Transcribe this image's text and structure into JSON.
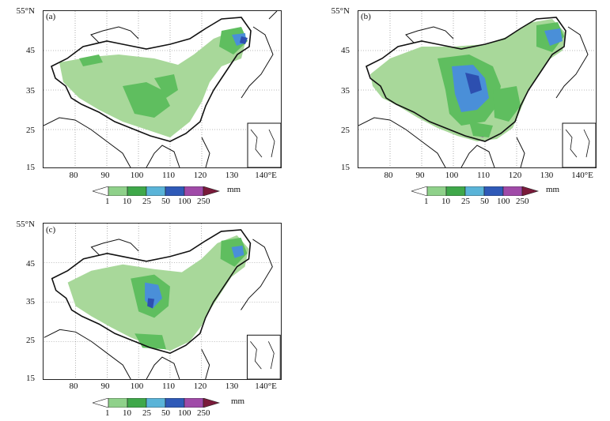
{
  "panels": [
    {
      "label": "(a)",
      "y_ticks": [
        "55°N",
        "45",
        "35",
        "25",
        "15"
      ],
      "x_ticks": [
        "80",
        "90",
        "100",
        "110",
        "120",
        "130",
        "140°E"
      ]
    },
    {
      "label": "(b)",
      "y_ticks": [
        "55°N",
        "45",
        "35",
        "25",
        "15"
      ],
      "x_ticks": [
        "80",
        "90",
        "100",
        "110",
        "120",
        "130",
        "140°E"
      ]
    },
    {
      "label": "(c)",
      "y_ticks": [
        "55°N",
        "45",
        "35",
        "25",
        "15"
      ],
      "x_ticks": [
        "80",
        "90",
        "100",
        "110",
        "120",
        "130",
        "140°E"
      ]
    }
  ],
  "legend": {
    "unit": "mm",
    "labels": [
      "1",
      "10",
      "25",
      "50",
      "100",
      "250"
    ],
    "colors": [
      "#ffffff",
      "#8fd18a",
      "#3fa84a",
      "#5ab4d8",
      "#2f5ab8",
      "#a04aa8",
      "#7a1a3a"
    ]
  },
  "map_colors": {
    "precip_light": "#a8d89a",
    "precip_mid": "#5fbe5f",
    "precip_blue": "#4a8fd8",
    "precip_dark": "#2d4fb0",
    "precip_purple": "#9b4aa8"
  }
}
